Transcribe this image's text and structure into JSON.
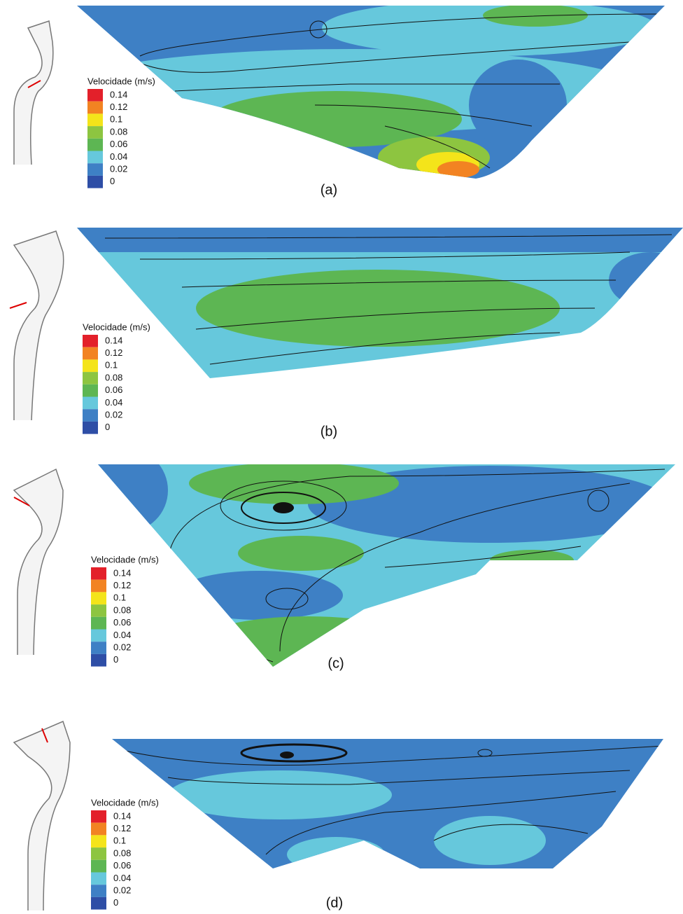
{
  "panels": [
    {
      "label": "(a)",
      "legend_title": "Velocidade (m/s)",
      "levels": [
        {
          "label": "0.14",
          "color": "#e3202a"
        },
        {
          "label": "0.12",
          "color": "#f28322"
        },
        {
          "label": "0.1",
          "color": "#f4e41a"
        },
        {
          "label": "0.08",
          "color": "#8dc540"
        },
        {
          "label": "0.06",
          "color": "#5db653"
        },
        {
          "label": "0.04",
          "color": "#66c8dc"
        },
        {
          "label": "0.02",
          "color": "#3e80c5"
        },
        {
          "label": "0",
          "color": "#2e4ea6"
        }
      ]
    },
    {
      "label": "(b)",
      "legend_title": "Velocidade (m/s)",
      "levels": [
        {
          "label": "0.14",
          "color": "#e3202a"
        },
        {
          "label": "0.12",
          "color": "#f28322"
        },
        {
          "label": "0.1",
          "color": "#f4e41a"
        },
        {
          "label": "0.08",
          "color": "#8dc540"
        },
        {
          "label": "0.06",
          "color": "#5db653"
        },
        {
          "label": "0.04",
          "color": "#66c8dc"
        },
        {
          "label": "0.02",
          "color": "#3e80c5"
        },
        {
          "label": "0",
          "color": "#2e4ea6"
        }
      ]
    },
    {
      "label": "(c)",
      "legend_title": "Velocidade (m/s)",
      "levels": [
        {
          "label": "0.14",
          "color": "#e3202a"
        },
        {
          "label": "0.12",
          "color": "#f28322"
        },
        {
          "label": "0.1",
          "color": "#f4e41a"
        },
        {
          "label": "0.08",
          "color": "#8dc540"
        },
        {
          "label": "0.06",
          "color": "#5db653"
        },
        {
          "label": "0.04",
          "color": "#66c8dc"
        },
        {
          "label": "0.02",
          "color": "#3e80c5"
        },
        {
          "label": "0",
          "color": "#2e4ea6"
        }
      ]
    },
    {
      "label": "(d)",
      "legend_title": "Velocidade (m/s)",
      "levels": [
        {
          "label": "0.14",
          "color": "#e3202a"
        },
        {
          "label": "0.12",
          "color": "#f28322"
        },
        {
          "label": "0.1",
          "color": "#f4e41a"
        },
        {
          "label": "0.08",
          "color": "#8dc540"
        },
        {
          "label": "0.06",
          "color": "#5db653"
        },
        {
          "label": "0.04",
          "color": "#66c8dc"
        },
        {
          "label": "0.02",
          "color": "#3e80c5"
        },
        {
          "label": "0",
          "color": "#2e4ea6"
        }
      ]
    }
  ]
}
